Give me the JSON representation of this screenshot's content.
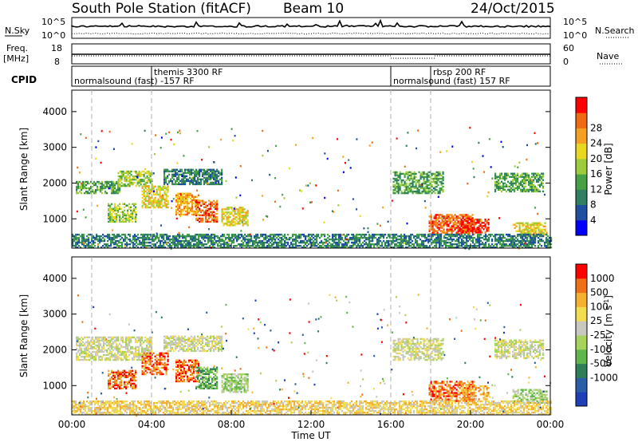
{
  "header": {
    "station": "South Pole Station (fitACF)",
    "beam": "Beam 10",
    "date": "24/Oct/2015"
  },
  "param_panels": {
    "nsky": {
      "label": "N.Sky",
      "right_label": "N.Search",
      "ticks_left": [
        "10^5",
        "10^0"
      ],
      "ticks_right": [
        "10^5",
        "10^0"
      ]
    },
    "freq": {
      "label_line1": "Freq.",
      "label_line2": "[MHz]",
      "right_label": "Nave",
      "ticks_left": [
        "18",
        "8"
      ],
      "ticks_right": [
        "60",
        "0"
      ]
    },
    "cpid": {
      "label": "CPID",
      "segments": [
        {
          "name": "normalsound (fast) -157 RF",
          "start_hour": 0.0,
          "end_hour": 16.0,
          "row": "low"
        },
        {
          "name": "themis 3300 RF",
          "start_hour": 4.0,
          "end_hour": 16.0,
          "row": "high"
        },
        {
          "name": "normalsound (fast) 157 RF",
          "start_hour": 16.0,
          "end_hour": 24.0,
          "row": "low"
        },
        {
          "name": "rbsp 200 RF",
          "start_hour": 18.0,
          "end_hour": 24.0,
          "row": "high"
        }
      ]
    }
  },
  "chart_data": [
    {
      "type": "heatmap",
      "name": "power",
      "ylabel": "Slant Range [km]",
      "yticks": [
        "1000",
        "2000",
        "3000",
        "4000"
      ],
      "ylim": [
        180,
        4600
      ],
      "xlim": [
        0,
        24
      ],
      "colorbar": {
        "label": "Power [dB]",
        "ticks": [
          "4",
          "8",
          "12",
          "16",
          "20",
          "24",
          "28"
        ],
        "colors": [
          "#0000ff",
          "#1f4fa0",
          "#2f7f60",
          "#46a044",
          "#9ccc3c",
          "#e8d820",
          "#f5a020",
          "#f06a14",
          "#ff0000"
        ]
      },
      "patches": [
        {
          "t0": 0.2,
          "t1": 2.4,
          "r0": 1700,
          "r1": 2050,
          "level": 3
        },
        {
          "t0": 2.3,
          "t1": 4.0,
          "r0": 1900,
          "r1": 2350,
          "level": 4
        },
        {
          "t0": 1.8,
          "t1": 3.2,
          "r0": 900,
          "r1": 1400,
          "level": 4
        },
        {
          "t0": 3.5,
          "t1": 4.8,
          "r0": 1300,
          "r1": 1900,
          "level": 5
        },
        {
          "t0": 4.6,
          "t1": 7.5,
          "r0": 1950,
          "r1": 2400,
          "level": 2
        },
        {
          "t0": 5.2,
          "t1": 6.4,
          "r0": 1100,
          "r1": 1700,
          "level": 6
        },
        {
          "t0": 6.2,
          "t1": 7.3,
          "r0": 900,
          "r1": 1500,
          "level": 7
        },
        {
          "t0": 7.5,
          "t1": 8.8,
          "r0": 800,
          "r1": 1300,
          "level": 5
        },
        {
          "t0": 16.1,
          "t1": 18.6,
          "r0": 1700,
          "r1": 2300,
          "level": 3
        },
        {
          "t0": 17.9,
          "t1": 20.2,
          "r0": 550,
          "r1": 1100,
          "level": 7
        },
        {
          "t0": 19.5,
          "t1": 20.9,
          "r0": 600,
          "r1": 1000,
          "level": 8
        },
        {
          "t0": 21.2,
          "t1": 23.6,
          "r0": 1750,
          "r1": 2250,
          "level": 3
        },
        {
          "t0": 22.1,
          "t1": 23.8,
          "r0": 500,
          "r1": 900,
          "level": 5
        },
        {
          "t0": 0.0,
          "t1": 24.0,
          "r0": 180,
          "r1": 550,
          "level": 2
        }
      ]
    },
    {
      "type": "heatmap",
      "name": "velocity",
      "ylabel": "Slant Range [km]",
      "yticks": [
        "1000",
        "2000",
        "3000",
        "4000"
      ],
      "ylim": [
        180,
        4600
      ],
      "xlim": [
        0,
        24
      ],
      "xlabel": "Time UT",
      "xticks": [
        "00:00",
        "04:00",
        "08:00",
        "12:00",
        "16:00",
        "20:00",
        "00:00"
      ],
      "colorbar": {
        "label": "Velocity [m s",
        "label_sup": "-1",
        "label_end": "]",
        "ticks": [
          "1000",
          "500",
          "100",
          "25",
          "-25",
          "-100",
          "-500",
          "-1000"
        ],
        "colors": [
          "#1f3fb8",
          "#2a5ea8",
          "#2e7f58",
          "#5fb64a",
          "#a6d45a",
          "#c8c8c0",
          "#f2dc50",
          "#f5b030",
          "#f07018",
          "#ff0000"
        ]
      },
      "patches": [
        {
          "t0": 0.2,
          "t1": 4.0,
          "r0": 1700,
          "r1": 2350,
          "level": 5
        },
        {
          "t0": 4.6,
          "t1": 7.5,
          "r0": 1950,
          "r1": 2400,
          "level": 5
        },
        {
          "t0": 1.8,
          "t1": 3.2,
          "r0": 900,
          "r1": 1400,
          "level": 8
        },
        {
          "t0": 3.5,
          "t1": 4.8,
          "r0": 1300,
          "r1": 1900,
          "level": 8
        },
        {
          "t0": 5.2,
          "t1": 6.4,
          "r0": 1100,
          "r1": 1700,
          "level": 8
        },
        {
          "t0": 6.2,
          "t1": 7.3,
          "r0": 900,
          "r1": 1500,
          "level": 3
        },
        {
          "t0": 7.5,
          "t1": 8.8,
          "r0": 800,
          "r1": 1300,
          "level": 4
        },
        {
          "t0": 16.1,
          "t1": 18.6,
          "r0": 1700,
          "r1": 2300,
          "level": 5
        },
        {
          "t0": 17.9,
          "t1": 20.2,
          "r0": 550,
          "r1": 1100,
          "level": 8
        },
        {
          "t0": 19.5,
          "t1": 20.9,
          "r0": 600,
          "r1": 1000,
          "level": 7
        },
        {
          "t0": 21.2,
          "t1": 23.6,
          "r0": 1750,
          "r1": 2250,
          "level": 5
        },
        {
          "t0": 22.1,
          "t1": 23.8,
          "r0": 500,
          "r1": 900,
          "level": 4
        },
        {
          "t0": 0.0,
          "t1": 24.0,
          "r0": 180,
          "r1": 550,
          "level": 6
        }
      ]
    }
  ]
}
